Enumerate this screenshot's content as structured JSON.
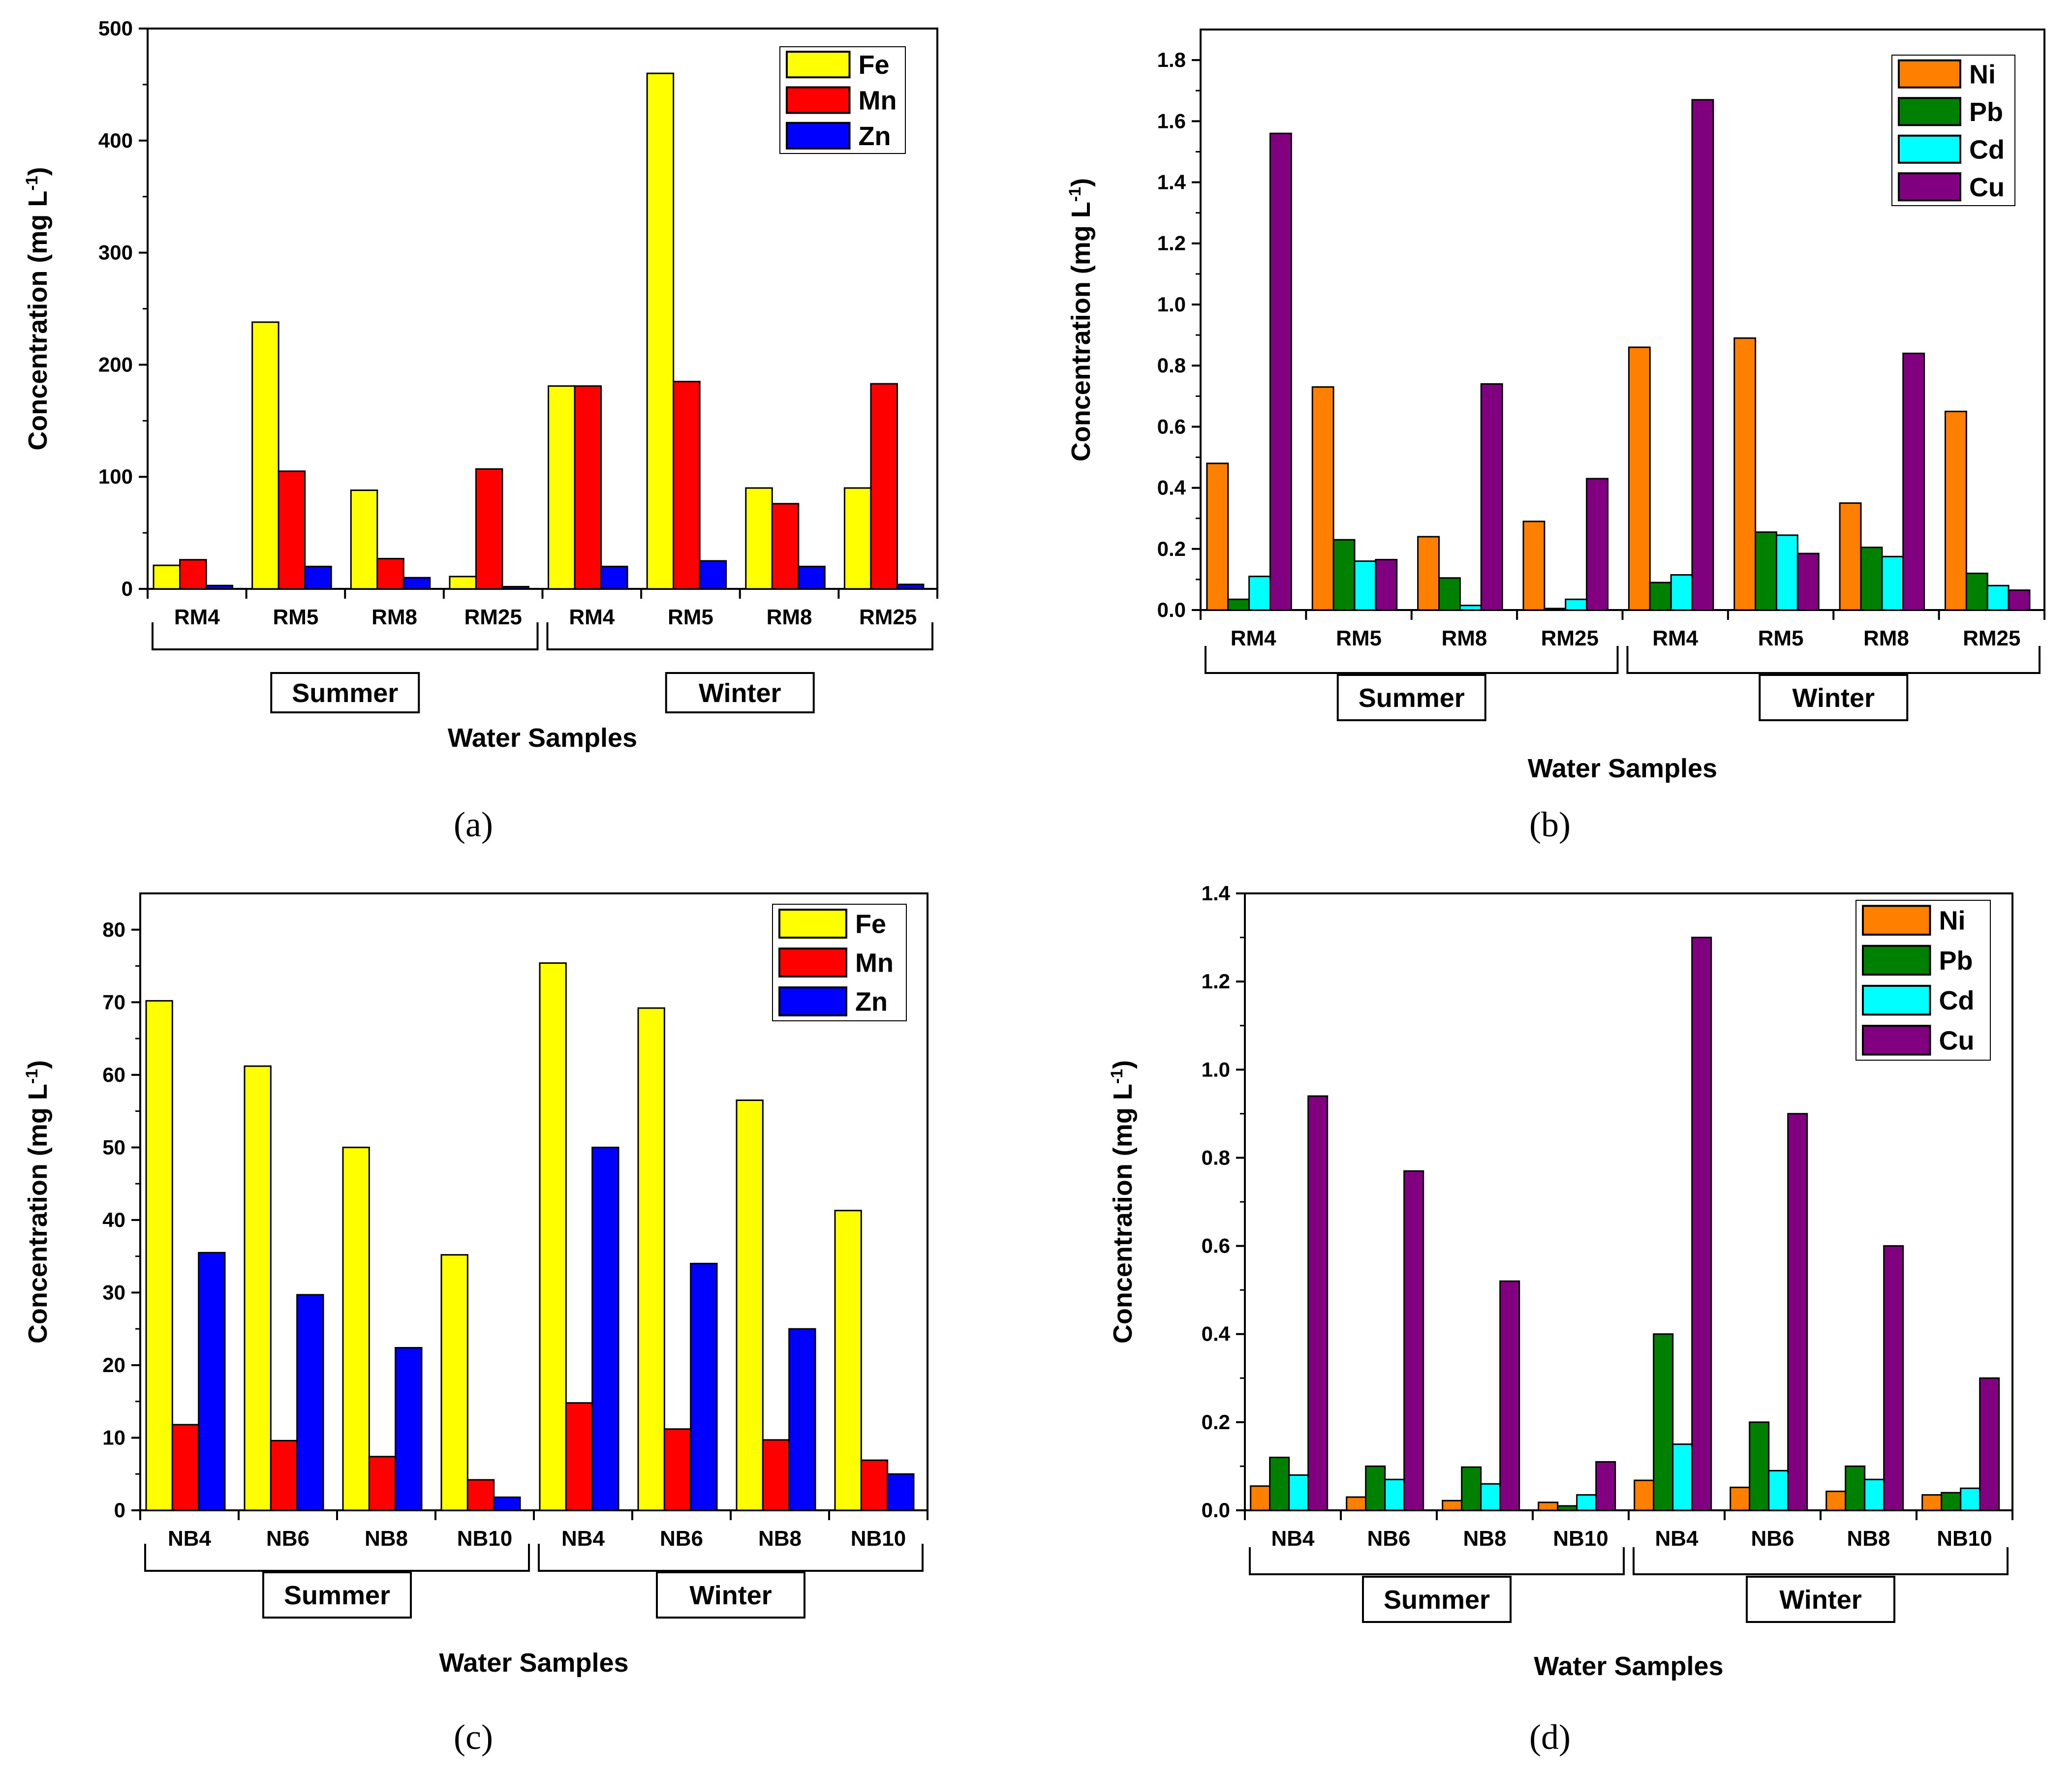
{
  "colors": {
    "Fe": "#ffff00",
    "Mn": "#ff0000",
    "Zn": "#0000ff",
    "Ni": "#ff8000",
    "Pb": "#008000",
    "Cd": "#00ffff",
    "Cu": "#800080"
  },
  "chart_data": [
    {
      "id": "a",
      "caption": "(a)",
      "type": "bar",
      "categories": [
        "RM4",
        "RM5",
        "RM8",
        "RM25",
        "RM4",
        "RM5",
        "RM8",
        "RM25"
      ],
      "groups": [
        {
          "label": "Summer",
          "count": 4
        },
        {
          "label": "Winter",
          "count": 4
        }
      ],
      "xlabel": "Water Samples",
      "ylabel": "Concentration (mg L",
      "ylabel_sup": "-1",
      "ylabel_close": ")",
      "ylim": [
        0,
        500
      ],
      "yticks": [
        0,
        100,
        200,
        300,
        400,
        500
      ],
      "ytick_labels": [
        "0",
        "100",
        "200",
        "300",
        "400",
        "500"
      ],
      "series": [
        {
          "name": "Fe",
          "values": [
            21,
            238,
            88,
            11,
            181,
            460,
            90,
            90
          ]
        },
        {
          "name": "Mn",
          "values": [
            26,
            105,
            27,
            107,
            181,
            185,
            76,
            183
          ]
        },
        {
          "name": "Zn",
          "values": [
            3,
            20,
            10,
            2,
            20,
            25,
            20,
            4
          ]
        }
      ],
      "legend": "top-right"
    },
    {
      "id": "b",
      "caption": "(b)",
      "type": "bar",
      "categories": [
        "RM4",
        "RM5",
        "RM8",
        "RM25",
        "RM4",
        "RM5",
        "RM8",
        "RM25"
      ],
      "groups": [
        {
          "label": "Summer",
          "count": 4
        },
        {
          "label": "Winter",
          "count": 4
        }
      ],
      "xlabel": "Water Samples",
      "ylabel": "Concentration (mg L",
      "ylabel_sup": "-1",
      "ylabel_close": ")",
      "ylim": [
        0,
        1.9
      ],
      "yticks": [
        0,
        0.2,
        0.4,
        0.6,
        0.8,
        1.0,
        1.2,
        1.4,
        1.6,
        1.8
      ],
      "ytick_labels": [
        "0.0",
        "0.2",
        "0.4",
        "0.6",
        "0.8",
        "1.0",
        "1.2",
        "1.4",
        "1.6",
        "1.8"
      ],
      "series": [
        {
          "name": "Ni",
          "values": [
            0.48,
            0.73,
            0.24,
            0.29,
            0.86,
            0.89,
            0.35,
            0.65
          ]
        },
        {
          "name": "Pb",
          "values": [
            0.035,
            0.23,
            0.105,
            0.005,
            0.09,
            0.255,
            0.205,
            0.12
          ]
        },
        {
          "name": "Cd",
          "values": [
            0.11,
            0.16,
            0.015,
            0.035,
            0.115,
            0.245,
            0.175,
            0.08
          ]
        },
        {
          "name": "Cu",
          "values": [
            1.56,
            0.165,
            0.74,
            0.43,
            1.67,
            0.185,
            0.84,
            0.065
          ]
        }
      ],
      "legend": "top-right"
    },
    {
      "id": "c",
      "caption": "(c)",
      "type": "bar",
      "categories": [
        "NB4",
        "NB6",
        "NB8",
        "NB10",
        "NB4",
        "NB6",
        "NB8",
        "NB10"
      ],
      "groups": [
        {
          "label": "Summer",
          "count": 4
        },
        {
          "label": "Winter",
          "count": 4
        }
      ],
      "xlabel": "Water Samples",
      "ylabel": "Concentration (mg L",
      "ylabel_sup": "-1",
      "ylabel_close": ")",
      "ylim": [
        0,
        85
      ],
      "yticks": [
        0,
        10,
        20,
        30,
        40,
        50,
        60,
        70,
        80
      ],
      "ytick_labels": [
        "0",
        "10",
        "20",
        "30",
        "40",
        "50",
        "60",
        "70",
        "80"
      ],
      "series": [
        {
          "name": "Fe",
          "values": [
            70.2,
            61.2,
            50,
            35.2,
            75.4,
            69.2,
            56.5,
            41.3
          ]
        },
        {
          "name": "Mn",
          "values": [
            11.8,
            9.6,
            7.4,
            4.2,
            14.8,
            11.2,
            9.7,
            6.9
          ]
        },
        {
          "name": "Zn",
          "values": [
            35.5,
            29.7,
            22.4,
            1.8,
            50,
            34,
            25,
            5
          ]
        }
      ],
      "legend": "top-right"
    },
    {
      "id": "d",
      "caption": "(d)",
      "type": "bar",
      "categories": [
        "NB4",
        "NB6",
        "NB8",
        "NB10",
        "NB4",
        "NB6",
        "NB8",
        "NB10"
      ],
      "groups": [
        {
          "label": "Summer",
          "count": 4
        },
        {
          "label": "Winter",
          "count": 4
        }
      ],
      "xlabel": "Water Samples",
      "ylabel": "Concentration (mg L",
      "ylabel_sup": "-1",
      "ylabel_close": ")",
      "ylim": [
        0,
        1.4
      ],
      "yticks": [
        0,
        0.2,
        0.4,
        0.6,
        0.8,
        1.0,
        1.2,
        1.4
      ],
      "ytick_labels": [
        "0.0",
        "0.2",
        "0.4",
        "0.6",
        "0.8",
        "1.0",
        "1.2",
        "1.4"
      ],
      "series": [
        {
          "name": "Ni",
          "values": [
            0.055,
            0.03,
            0.022,
            0.018,
            0.068,
            0.052,
            0.043,
            0.035
          ]
        },
        {
          "name": "Pb",
          "values": [
            0.12,
            0.1,
            0.098,
            0.01,
            0.4,
            0.2,
            0.1,
            0.04
          ]
        },
        {
          "name": "Cd",
          "values": [
            0.08,
            0.07,
            0.06,
            0.035,
            0.15,
            0.09,
            0.07,
            0.05
          ]
        },
        {
          "name": "Cu",
          "values": [
            0.94,
            0.77,
            0.52,
            0.11,
            1.3,
            0.9,
            0.6,
            0.3
          ]
        }
      ],
      "legend": "top-right"
    }
  ]
}
